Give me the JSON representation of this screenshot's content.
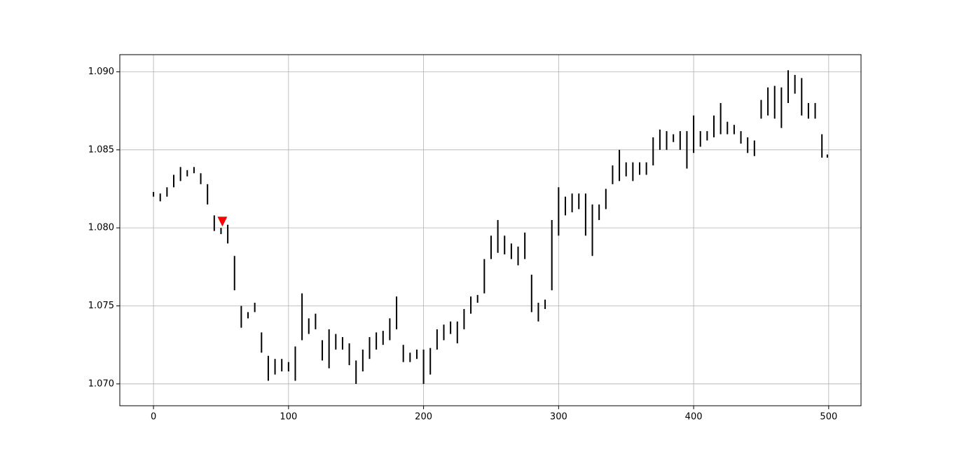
{
  "chart_data": {
    "type": "candlestick",
    "color": "#000000",
    "x": [
      0,
      5,
      10,
      15,
      20,
      25,
      30,
      35,
      40,
      45,
      50,
      55,
      60,
      65,
      70,
      75,
      80,
      85,
      90,
      95,
      100,
      105,
      110,
      115,
      120,
      125,
      130,
      135,
      140,
      145,
      150,
      155,
      160,
      165,
      170,
      175,
      180,
      185,
      190,
      195,
      200,
      205,
      210,
      215,
      220,
      225,
      230,
      235,
      240,
      245,
      250,
      255,
      260,
      265,
      270,
      275,
      280,
      285,
      290,
      295,
      300,
      305,
      310,
      315,
      320,
      325,
      330,
      335,
      340,
      345,
      350,
      355,
      360,
      365,
      370,
      375,
      380,
      385,
      390,
      395,
      400,
      405,
      410,
      415,
      420,
      425,
      430,
      435,
      440,
      445,
      450,
      455,
      460,
      465,
      470,
      475,
      480,
      485,
      490,
      495,
      499
    ],
    "low": [
      1.082,
      1.0817,
      1.082,
      1.0826,
      1.083,
      1.0833,
      1.0835,
      1.0828,
      1.0815,
      1.0798,
      1.0796,
      1.079,
      1.076,
      1.0736,
      1.0742,
      1.0746,
      1.072,
      1.0702,
      1.0706,
      1.0708,
      1.0708,
      1.0702,
      1.0728,
      1.0732,
      1.0735,
      1.0715,
      1.071,
      1.0722,
      1.0722,
      1.0712,
      1.07,
      1.0708,
      1.0716,
      1.0722,
      1.0725,
      1.0728,
      1.0735,
      1.0714,
      1.0714,
      1.0716,
      1.07,
      1.0706,
      1.0722,
      1.0728,
      1.0732,
      1.0726,
      1.0735,
      1.0745,
      1.0752,
      1.0758,
      1.078,
      1.0784,
      1.0783,
      1.078,
      1.0776,
      1.078,
      1.0746,
      1.074,
      1.0748,
      1.076,
      1.0795,
      1.0808,
      1.081,
      1.0812,
      1.0795,
      1.0782,
      1.0805,
      1.0812,
      1.0828,
      1.083,
      1.0833,
      1.083,
      1.0834,
      1.0834,
      1.084,
      1.085,
      1.085,
      1.0855,
      1.085,
      1.0838,
      1.0848,
      1.0852,
      1.0856,
      1.0858,
      1.086,
      1.086,
      1.086,
      1.0854,
      1.0848,
      1.0846,
      1.087,
      1.0872,
      1.087,
      1.0864,
      1.088,
      1.0886,
      1.0872,
      1.087,
      1.087,
      1.0845,
      1.0845
    ],
    "high": [
      1.0823,
      1.0822,
      1.0826,
      1.0834,
      1.0839,
      1.0837,
      1.0839,
      1.0835,
      1.0828,
      1.0808,
      1.08,
      1.0802,
      1.0782,
      1.075,
      1.0746,
      1.0752,
      1.0733,
      1.0718,
      1.0716,
      1.0716,
      1.0714,
      1.0724,
      1.0758,
      1.0742,
      1.0745,
      1.0728,
      1.0735,
      1.0732,
      1.073,
      1.0726,
      1.0715,
      1.0722,
      1.073,
      1.0733,
      1.0734,
      1.0742,
      1.0756,
      1.0725,
      1.072,
      1.0722,
      1.0722,
      1.0723,
      1.0735,
      1.0738,
      1.074,
      1.074,
      1.0748,
      1.0756,
      1.0757,
      1.078,
      1.0795,
      1.0805,
      1.0795,
      1.079,
      1.0788,
      1.0797,
      1.077,
      1.0752,
      1.0754,
      1.0805,
      1.0826,
      1.082,
      1.0822,
      1.0822,
      1.0822,
      1.0815,
      1.0815,
      1.0825,
      1.084,
      1.085,
      1.0842,
      1.0842,
      1.0842,
      1.0842,
      1.0858,
      1.0863,
      1.0862,
      1.086,
      1.0862,
      1.0862,
      1.0872,
      1.0862,
      1.0862,
      1.0872,
      1.088,
      1.0868,
      1.0866,
      1.0862,
      1.0858,
      1.0856,
      1.0882,
      1.089,
      1.0891,
      1.089,
      1.0901,
      1.0898,
      1.0896,
      1.088,
      1.088,
      1.086,
      1.0847
    ],
    "markers": [
      {
        "x": 51,
        "y": 1.0804,
        "color": "#ff0000"
      }
    ],
    "xlim": [
      -24.95,
      523.95
    ],
    "ylim": [
      1.0686,
      1.0911
    ],
    "xticks": [
      0,
      100,
      200,
      300,
      400,
      500
    ],
    "yticks": [
      {
        "value": 1.07,
        "label": "1.070"
      },
      {
        "value": 1.075,
        "label": "1.075"
      },
      {
        "value": 1.08,
        "label": "1.080"
      },
      {
        "value": 1.085,
        "label": "1.085"
      },
      {
        "value": 1.09,
        "label": "1.090"
      }
    ],
    "grid": true
  }
}
